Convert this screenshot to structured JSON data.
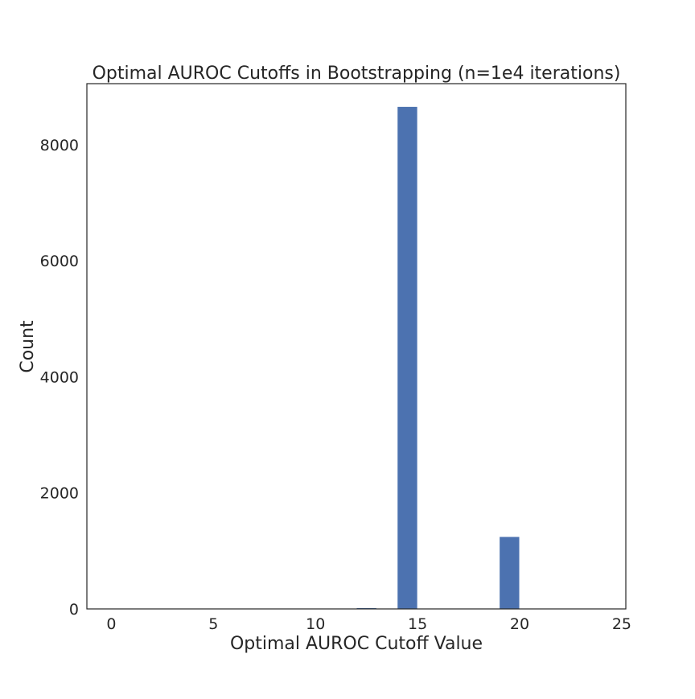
{
  "chart_data": {
    "type": "bar",
    "title": "Optimal AUROC Cutoffs in Bootstrapping (n=1e4 iterations)",
    "xlabel": "Optimal AUROC Cutoff Value",
    "ylabel": "Count",
    "xlim": [
      -1.2,
      25.2
    ],
    "ylim": [
      0,
      9050
    ],
    "xticks": [
      0,
      5,
      10,
      15,
      20,
      25
    ],
    "yticks": [
      0,
      2000,
      4000,
      6000,
      8000
    ],
    "bin_width": 0.96,
    "bars": [
      {
        "x": 12.5,
        "value": 15
      },
      {
        "x": 14.5,
        "value": 8650
      },
      {
        "x": 19.5,
        "value": 1240
      }
    ],
    "grid": false,
    "bar_color": "#4c72b0",
    "frame_color": "#262626"
  }
}
